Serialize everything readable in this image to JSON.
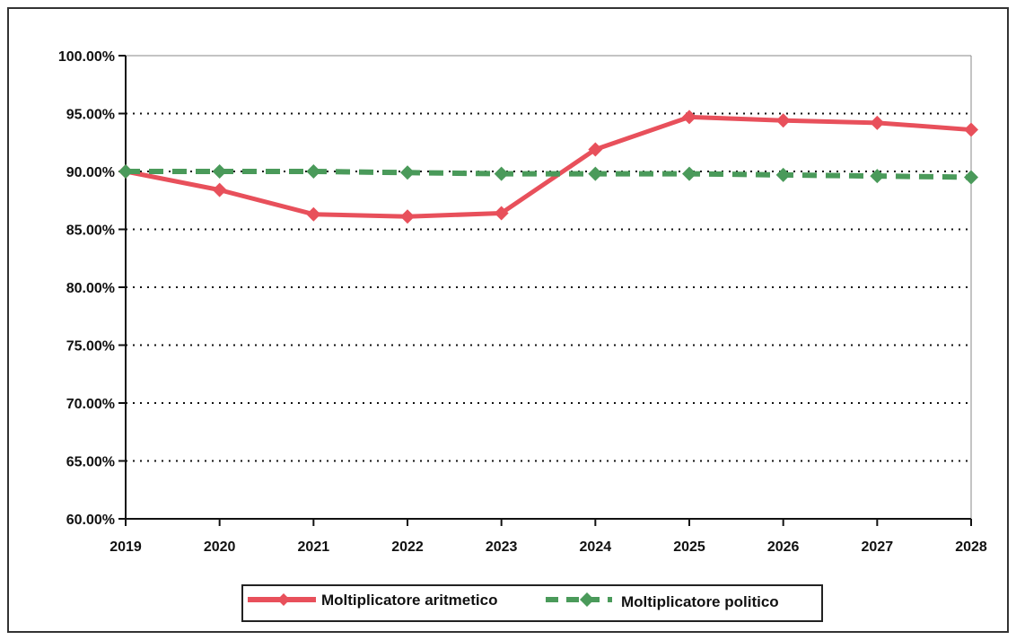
{
  "chart_data": {
    "type": "line",
    "title": "",
    "xlabel": "",
    "ylabel": "",
    "categories": [
      "2019",
      "2020",
      "2021",
      "2022",
      "2023",
      "2024",
      "2025",
      "2026",
      "2027",
      "2028"
    ],
    "ylim": [
      60,
      100
    ],
    "y_ticks": [
      "60.00%",
      "65.00%",
      "70.00%",
      "75.00%",
      "80.00%",
      "85.00%",
      "90.00%",
      "95.00%",
      "100.00%"
    ],
    "grid": "horizontal dotted",
    "legend_position": "bottom",
    "series": [
      {
        "name": "Moltiplicatore aritmetico",
        "color": "#e8505b",
        "style": "solid",
        "values": [
          90.0,
          88.4,
          86.3,
          86.1,
          86.4,
          91.9,
          94.7,
          94.4,
          94.2,
          93.6
        ]
      },
      {
        "name": "Moltiplicatore politico",
        "color": "#4a9a5a",
        "style": "dashed",
        "values": [
          90.0,
          90.0,
          90.0,
          89.9,
          89.8,
          89.8,
          89.8,
          89.7,
          89.6,
          89.5
        ]
      }
    ]
  }
}
